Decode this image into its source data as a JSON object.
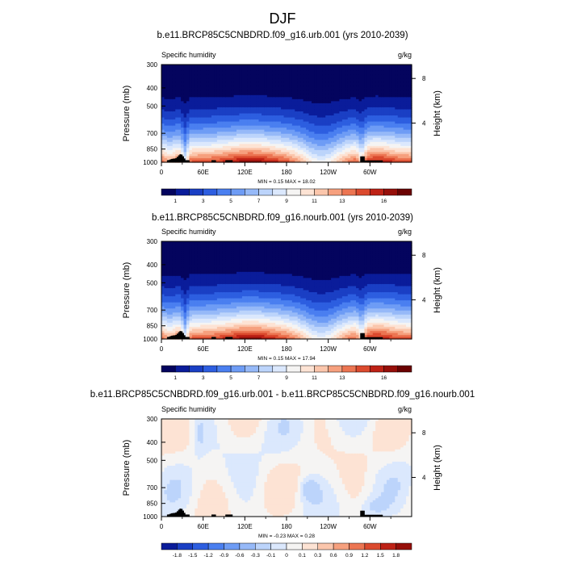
{
  "figure": {
    "title": "DJF"
  },
  "colors": {
    "levels": [
      -1.8,
      -1.5,
      -1.2,
      -0.9,
      -0.6,
      -0.3,
      -0.1,
      0,
      0.1,
      0.3,
      0.6,
      0.9,
      1.2,
      1.5,
      1.8
    ],
    "level_colors": [
      "#04045e",
      "#0a1c9a",
      "#1a3fc4",
      "#2d5ee0",
      "#4a7ff0",
      "#6e9cf5",
      "#96b9f8",
      "#bcd4fb",
      "#dbe8fd",
      "#f5f4f3",
      "#fde3d4",
      "#fbc6ac",
      "#f6a07e",
      "#ec7552",
      "#db4a2e",
      "#be2216",
      "#960f0a",
      "#6b0202"
    ],
    "topography": "#000000"
  },
  "chart_data": [
    {
      "type": "heatmap",
      "panel": "top",
      "title": "b.e11.BRCP85C5CNBDRD.f09_g16.urb.001 (yrs 2010-2039)",
      "left_label": "Specific humidity",
      "right_label": "g/kg",
      "ylabel": "Pressure (mb)",
      "ylabel_right": "Height (km)",
      "x_ticks": [
        "0",
        "60E",
        "120E",
        "180",
        "120W",
        "60W"
      ],
      "y_ticks": [
        "300",
        "400",
        "500",
        "700",
        "850",
        "1000"
      ],
      "y_right_ticks": [
        "8",
        "4"
      ],
      "min_max": "MIN =   0.15  MAX =   18.02",
      "colorbar_ticks": [
        "1",
        "3",
        "5",
        "7",
        "9",
        "11",
        "13",
        "16"
      ],
      "x_range": [
        0,
        360
      ],
      "y_range": [
        1000,
        300
      ],
      "y_scale": "log",
      "min": 0.15,
      "max": 18.02
    },
    {
      "type": "heatmap",
      "panel": "middle",
      "title": "b.e11.BRCP85C5CNBDRD.f09_g16.nourb.001 (yrs 2010-2039)",
      "left_label": "Specific humidity",
      "right_label": "g/kg",
      "ylabel": "Pressure (mb)",
      "ylabel_right": "Height (km)",
      "x_ticks": [
        "0",
        "60E",
        "120E",
        "180",
        "120W",
        "60W"
      ],
      "y_ticks": [
        "300",
        "400",
        "500",
        "700",
        "850",
        "1000"
      ],
      "y_right_ticks": [
        "8",
        "4"
      ],
      "min_max": "MIN =   0.15  MAX =   17.94",
      "colorbar_ticks": [
        "1",
        "3",
        "5",
        "7",
        "9",
        "11",
        "13",
        "16"
      ],
      "x_range": [
        0,
        360
      ],
      "y_range": [
        1000,
        300
      ],
      "y_scale": "log",
      "min": 0.15,
      "max": 17.94
    },
    {
      "type": "heatmap",
      "panel": "bottom",
      "title": "b.e11.BRCP85C5CNBDRD.f09_g16.urb.001 - b.e11.BRCP85C5CNBDRD.f09_g16.nourb.001",
      "left_label": "Specific humidity",
      "right_label": "g/kg",
      "ylabel": "Pressure (mb)",
      "ylabel_right": "Height (km)",
      "x_ticks": [
        "0",
        "60E",
        "120E",
        "180",
        "120W",
        "60W"
      ],
      "y_ticks": [
        "300",
        "400",
        "500",
        "700",
        "850",
        "1000"
      ],
      "y_right_ticks": [
        "8",
        "4"
      ],
      "min_max": "MIN =   -0.23  MAX =   0.28",
      "colorbar_ticks": [
        "-1.8",
        "-1.5",
        "-1.2",
        "-0.9",
        "-0.6",
        "-0.3",
        "-0.1",
        "0",
        "0.1",
        "0.3",
        "0.6",
        "0.9",
        "1.2",
        "1.5",
        "1.8"
      ],
      "x_range": [
        0,
        360
      ],
      "y_range": [
        1000,
        300
      ],
      "y_scale": "log",
      "min": -0.23,
      "max": 0.28
    }
  ]
}
